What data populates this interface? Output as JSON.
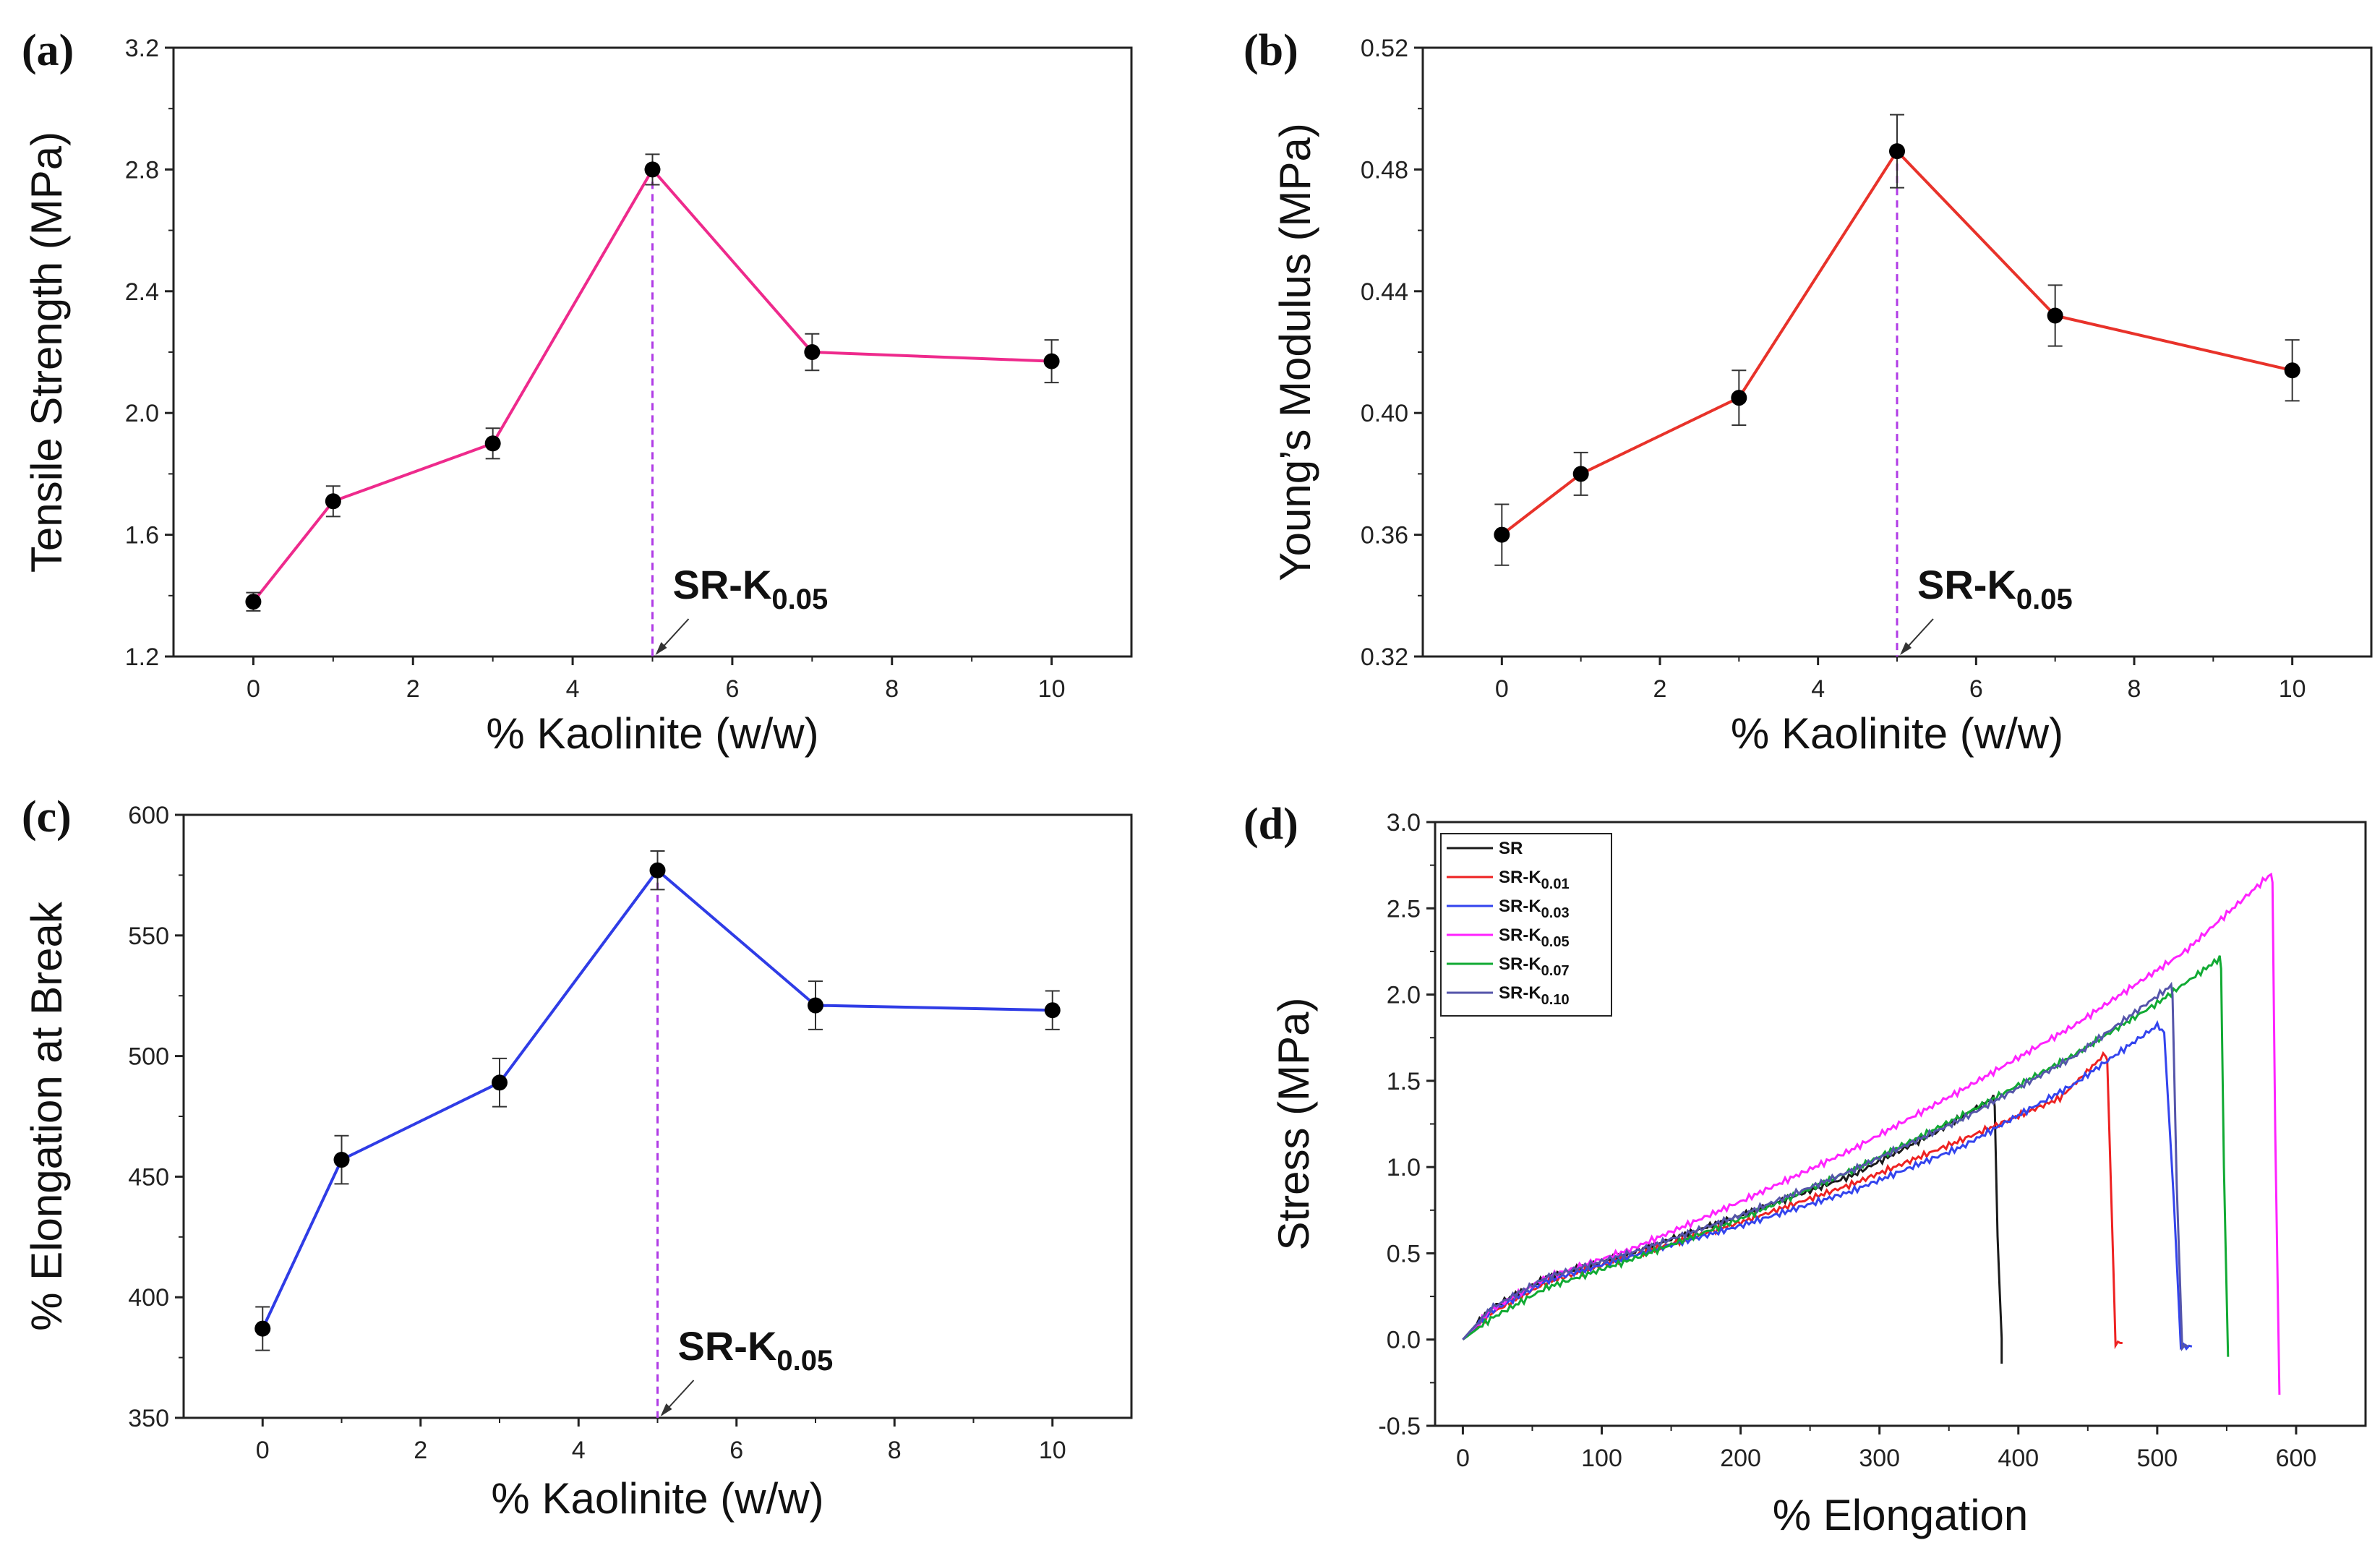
{
  "chart_data": [
    {
      "id": "a",
      "type": "line",
      "panel_label": "(a)",
      "title": "",
      "xlabel": "% Kaolinite (w/w)",
      "ylabel": "Tensile Strength (MPa)",
      "xlim": [
        -1,
        11
      ],
      "ylim": [
        1.2,
        3.2
      ],
      "xticks": [
        0,
        2,
        4,
        6,
        8,
        10
      ],
      "yticks": [
        1.2,
        1.6,
        2.0,
        2.4,
        2.8,
        3.2
      ],
      "ytick_labels": [
        "1.2",
        "1.6",
        "2.0",
        "2.4",
        "2.8",
        "3.2"
      ],
      "color": "#ee2a8c",
      "x": [
        0,
        1,
        3,
        5,
        7,
        10
      ],
      "y": [
        1.38,
        1.71,
        1.9,
        2.8,
        2.2,
        2.17
      ],
      "yerr": [
        0.03,
        0.05,
        0.05,
        0.05,
        0.06,
        0.07
      ],
      "marker_line_x": 5,
      "annotation": {
        "text": "SR-K",
        "sub": "0.05",
        "x": 5
      }
    },
    {
      "id": "b",
      "type": "line",
      "panel_label": "(b)",
      "title": "",
      "xlabel": "% Kaolinite (w/w)",
      "ylabel": "Young’s Modulus (MPa)",
      "xlim": [
        -1,
        11
      ],
      "ylim": [
        0.32,
        0.52
      ],
      "xticks": [
        0,
        2,
        4,
        6,
        8,
        10
      ],
      "yticks": [
        0.32,
        0.36,
        0.4,
        0.44,
        0.48,
        0.52
      ],
      "ytick_labels": [
        "0.32",
        "0.36",
        "0.40",
        "0.44",
        "0.48",
        "0.52"
      ],
      "color": "#e8322a",
      "x": [
        0,
        1,
        3,
        5,
        7,
        10
      ],
      "y": [
        0.36,
        0.38,
        0.405,
        0.486,
        0.432,
        0.414
      ],
      "yerr": [
        0.01,
        0.007,
        0.009,
        0.012,
        0.01,
        0.01
      ],
      "marker_line_x": 5,
      "annotation": {
        "text": "SR-K",
        "sub": "0.05",
        "x": 5
      }
    },
    {
      "id": "c",
      "type": "line",
      "panel_label": "(c)",
      "title": "",
      "xlabel": "% Kaolinite (w/w)",
      "ylabel": "% Elongation at Break",
      "xlim": [
        -1,
        11
      ],
      "ylim": [
        350,
        600
      ],
      "xticks": [
        0,
        2,
        4,
        6,
        8,
        10
      ],
      "yticks": [
        350,
        400,
        450,
        500,
        550,
        600
      ],
      "ytick_labels": [
        "350",
        "400",
        "450",
        "500",
        "550",
        "600"
      ],
      "color": "#2f3ce6",
      "x": [
        0,
        1,
        3,
        5,
        7,
        10
      ],
      "y": [
        387,
        457,
        489,
        577,
        521,
        519
      ],
      "yerr": [
        9,
        10,
        10,
        8,
        10,
        8
      ],
      "marker_line_x": 5,
      "annotation": {
        "text": "SR-K",
        "sub": "0.05",
        "x": 5
      }
    },
    {
      "id": "d",
      "type": "line",
      "panel_label": "(d)",
      "title": "",
      "xlabel": "% Elongation",
      "ylabel": "Stress (MPa)",
      "xlim": [
        -20,
        650
      ],
      "ylim": [
        -0.5,
        3.0
      ],
      "xticks": [
        0,
        100,
        200,
        300,
        400,
        500,
        600
      ],
      "yticks": [
        -0.5,
        0.0,
        0.5,
        1.0,
        1.5,
        2.0,
        2.5,
        3.0
      ],
      "ytick_labels": [
        "-0.5",
        "0.0",
        "0.5",
        "1.0",
        "1.5",
        "2.0",
        "2.5",
        "3.0"
      ],
      "legend_position": "top-left",
      "series": [
        {
          "name": "SR",
          "sub": "",
          "color": "#1a1a1a",
          "x": [
            0,
            20,
            60,
            120,
            200,
            280,
            340,
            382,
            383,
            385,
            388,
            388
          ],
          "y": [
            0.0,
            0.18,
            0.36,
            0.5,
            0.72,
            0.95,
            1.2,
            1.4,
            1.35,
            0.6,
            0.0,
            -0.14
          ]
        },
        {
          "name": "SR-K",
          "sub": "0.01",
          "color": "#ee2222",
          "x": [
            0,
            20,
            60,
            120,
            200,
            280,
            360,
            430,
            463,
            464,
            467,
            470,
            475
          ],
          "y": [
            0.0,
            0.15,
            0.33,
            0.48,
            0.68,
            0.9,
            1.16,
            1.4,
            1.66,
            1.62,
            0.8,
            -0.02,
            -0.02
          ]
        },
        {
          "name": "SR-K",
          "sub": "0.03",
          "color": "#3344ee",
          "x": [
            0,
            20,
            60,
            120,
            200,
            280,
            360,
            440,
            500,
            505,
            512,
            517,
            525
          ],
          "y": [
            0.0,
            0.16,
            0.34,
            0.48,
            0.66,
            0.86,
            1.12,
            1.48,
            1.82,
            1.78,
            0.8,
            -0.04,
            -0.04
          ]
        },
        {
          "name": "SR-K",
          "sub": "0.05",
          "color": "#ff22ff",
          "x": [
            0,
            20,
            60,
            120,
            200,
            280,
            360,
            440,
            520,
            582,
            583,
            585,
            588
          ],
          "y": [
            0.0,
            0.17,
            0.36,
            0.52,
            0.8,
            1.1,
            1.45,
            1.82,
            2.25,
            2.7,
            2.65,
            1.2,
            -0.32
          ]
        },
        {
          "name": "SR-K",
          "sub": "0.07",
          "color": "#11aa33",
          "x": [
            0,
            20,
            60,
            120,
            200,
            280,
            360,
            440,
            500,
            545,
            546,
            548,
            551
          ],
          "y": [
            0.0,
            0.12,
            0.3,
            0.46,
            0.7,
            0.98,
            1.3,
            1.65,
            1.95,
            2.21,
            2.15,
            1.0,
            -0.1
          ]
        },
        {
          "name": "SR-K",
          "sub": "0.10",
          "color": "#5555aa",
          "x": [
            0,
            20,
            60,
            120,
            200,
            280,
            360,
            440,
            510,
            511,
            514,
            518,
            522
          ],
          "y": [
            0.0,
            0.18,
            0.36,
            0.5,
            0.72,
            0.98,
            1.28,
            1.64,
            2.05,
            2.0,
            0.9,
            -0.04,
            -0.04
          ]
        }
      ]
    }
  ]
}
